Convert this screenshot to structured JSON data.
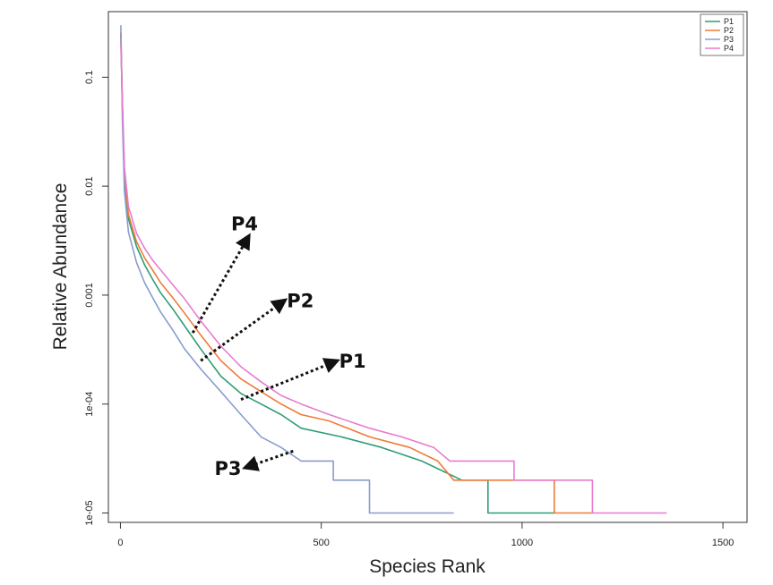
{
  "chart_data": {
    "type": "line",
    "title": "",
    "xlabel": "Species Rank",
    "ylabel": "Relative Abundance",
    "x_scale": "linear",
    "y_scale": "log",
    "xlim": [
      -30,
      1560
    ],
    "ylim": [
      8.2e-06,
      0.4
    ],
    "x_ticks": [
      0,
      500,
      1000,
      1500
    ],
    "x_tick_labels": [
      "0",
      "500",
      "1000",
      "1500"
    ],
    "y_ticks": [
      0.1,
      0.01,
      0.001,
      0.0001,
      1e-05
    ],
    "y_tick_labels": [
      "0.1",
      "0.01",
      "0.001",
      "1e-04",
      "1e-05"
    ],
    "grid": false,
    "legend_position": "top-right",
    "series": [
      {
        "name": "P1",
        "color": "#2f9e72",
        "points": [
          [
            1,
            0.25
          ],
          [
            5,
            0.05
          ],
          [
            10,
            0.012
          ],
          [
            20,
            0.005
          ],
          [
            40,
            0.0028
          ],
          [
            60,
            0.0019
          ],
          [
            80,
            0.0014
          ],
          [
            100,
            0.00105
          ],
          [
            130,
            0.00075
          ],
          [
            160,
            0.00052
          ],
          [
            200,
            0.00032
          ],
          [
            250,
            0.00018
          ],
          [
            300,
            0.000125
          ],
          [
            350,
            0.0001
          ],
          [
            400,
            8e-05
          ],
          [
            450,
            6e-05
          ],
          [
            550,
            5e-05
          ],
          [
            650,
            4e-05
          ],
          [
            750,
            3e-05
          ],
          [
            850,
            2e-05
          ],
          [
            915,
            2e-05
          ],
          [
            915,
            1e-05
          ],
          [
            1080,
            1e-05
          ]
        ]
      },
      {
        "name": "P2",
        "color": "#f07a3a",
        "points": [
          [
            1,
            0.26
          ],
          [
            5,
            0.055
          ],
          [
            10,
            0.013
          ],
          [
            20,
            0.0055
          ],
          [
            40,
            0.0031
          ],
          [
            60,
            0.0022
          ],
          [
            80,
            0.0017
          ],
          [
            100,
            0.0013
          ],
          [
            130,
            0.00095
          ],
          [
            160,
            0.00068
          ],
          [
            200,
            0.00043
          ],
          [
            250,
            0.00025
          ],
          [
            300,
            0.00017
          ],
          [
            350,
            0.00013
          ],
          [
            400,
            0.0001
          ],
          [
            450,
            8e-05
          ],
          [
            520,
            7e-05
          ],
          [
            620,
            5e-05
          ],
          [
            720,
            4e-05
          ],
          [
            790,
            3e-05
          ],
          [
            830,
            2e-05
          ],
          [
            1080,
            2e-05
          ],
          [
            1080,
            1e-05
          ],
          [
            1175,
            1e-05
          ]
        ]
      },
      {
        "name": "P3",
        "color": "#8a9ccf",
        "points": [
          [
            1,
            0.3
          ],
          [
            5,
            0.04
          ],
          [
            10,
            0.009
          ],
          [
            20,
            0.0038
          ],
          [
            40,
            0.002
          ],
          [
            60,
            0.0013
          ],
          [
            80,
            0.00095
          ],
          [
            100,
            0.0007
          ],
          [
            130,
            0.00048
          ],
          [
            160,
            0.00032
          ],
          [
            200,
            0.00021
          ],
          [
            250,
            0.00013
          ],
          [
            300,
            8e-05
          ],
          [
            350,
            5e-05
          ],
          [
            400,
            4e-05
          ],
          [
            450,
            3e-05
          ],
          [
            530,
            3e-05
          ],
          [
            530,
            2e-05
          ],
          [
            620,
            2e-05
          ],
          [
            620,
            1e-05
          ],
          [
            830,
            1e-05
          ]
        ]
      },
      {
        "name": "P4",
        "color": "#e77bd0",
        "points": [
          [
            1,
            0.2
          ],
          [
            5,
            0.06
          ],
          [
            10,
            0.015
          ],
          [
            20,
            0.0065
          ],
          [
            40,
            0.0037
          ],
          [
            60,
            0.0027
          ],
          [
            80,
            0.0021
          ],
          [
            100,
            0.0017
          ],
          [
            130,
            0.00125
          ],
          [
            160,
            0.00092
          ],
          [
            200,
            0.00058
          ],
          [
            250,
            0.00034
          ],
          [
            300,
            0.00022
          ],
          [
            350,
            0.00016
          ],
          [
            400,
            0.00012
          ],
          [
            450,
            0.0001
          ],
          [
            520,
            8e-05
          ],
          [
            620,
            6e-05
          ],
          [
            700,
            5e-05
          ],
          [
            780,
            4e-05
          ],
          [
            820,
            3e-05
          ],
          [
            980,
            3e-05
          ],
          [
            980,
            2e-05
          ],
          [
            1175,
            2e-05
          ],
          [
            1175,
            1e-05
          ],
          [
            1360,
            1e-05
          ]
        ]
      }
    ],
    "annotations": [
      {
        "label": "P4",
        "arrow_from": [
          180,
          0.00045
        ],
        "arrow_to": [
          320,
          0.0035
        ]
      },
      {
        "label": "P2",
        "arrow_from": [
          200,
          0.00025
        ],
        "arrow_to": [
          410,
          0.0009
        ]
      },
      {
        "label": "P1",
        "arrow_from": [
          300,
          0.00011
        ],
        "arrow_to": [
          540,
          0.00025
        ]
      },
      {
        "label": "P3",
        "arrow_from": [
          430,
          3.7e-05
        ],
        "arrow_to": [
          310,
          2.6e-05
        ]
      }
    ]
  }
}
